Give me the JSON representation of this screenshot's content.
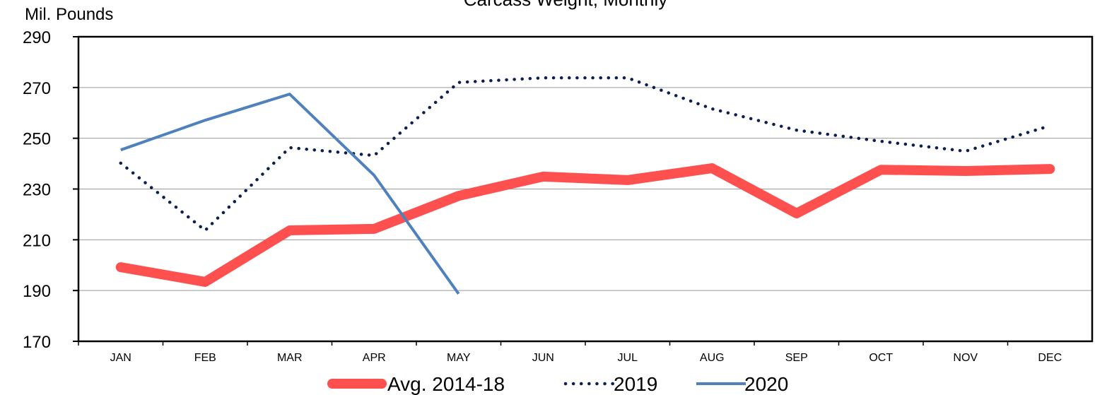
{
  "chart_data": {
    "type": "line",
    "title": "Carcass Weight, Monthly",
    "y_label": "Mil. Pounds",
    "categories": [
      "JAN",
      "FEB",
      "MAR",
      "APR",
      "MAY",
      "JUN",
      "JUL",
      "AUG",
      "SEP",
      "OCT",
      "NOV",
      "DEC"
    ],
    "series": [
      {
        "name": "Avg. 2014-18",
        "color": "#ff5050",
        "values": [
          199.2,
          193.4,
          213.7,
          214.3,
          227.3,
          234.9,
          233.5,
          238.2,
          220.4,
          237.6,
          237.1,
          237.9
        ]
      },
      {
        "name": "2019",
        "color": "#0d1f4f",
        "values": [
          240.2,
          213.7,
          246.3,
          243.2,
          272,
          273.8,
          273.8,
          261.6,
          253.2,
          248.8,
          244.9,
          254.9
        ]
      },
      {
        "name": "2020",
        "color": "#4f81bd",
        "values": [
          245.4,
          257.1,
          267.4,
          235.4,
          188.7,
          null,
          null,
          null,
          null,
          null,
          null,
          null
        ]
      }
    ],
    "ylim": [
      170,
      290
    ],
    "yticks": [
      170,
      190,
      210,
      230,
      250,
      270,
      290
    ],
    "grid": true
  }
}
